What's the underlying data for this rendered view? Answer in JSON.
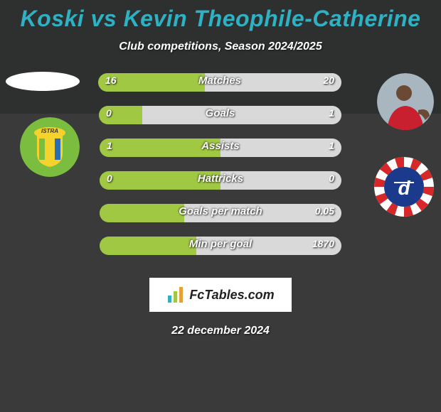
{
  "title": "Koski vs Kevin Theophile-Catherine",
  "subtitle": "Club competitions, Season 2024/2025",
  "date": "22 december 2024",
  "fctables_label": "FcTables.com",
  "colors": {
    "title": "#2fb1c4",
    "bg_top": "#2e2f2f",
    "bg_bottom": "#3a3a3a",
    "bar_track": "#6a6a6a",
    "bar_left": "#a0c843",
    "bar_right": "#d9d9d9",
    "fctables_text": "#222222",
    "fctables_bars": [
      "#2fb1c4",
      "#a0c843",
      "#e4a13a"
    ]
  },
  "club1": {
    "bg": "#7bbd3f",
    "accent": "#f6d22c",
    "label": "ISTRA"
  },
  "club2": {
    "bg": "#ffffff",
    "red": "#d62828",
    "blue": "#1b3a8c",
    "letter": "d"
  },
  "player2_avatar": {
    "shirt": "#c8202e",
    "skin": "#6a4a34",
    "bg": "#a8b6c0"
  },
  "bars": [
    {
      "label": "Matches",
      "left_val": "16",
      "right_val": "20",
      "left_pct": 44,
      "right_pct": 56
    },
    {
      "label": "Goals",
      "left_val": "0",
      "right_val": "1",
      "left_pct": 18,
      "right_pct": 82
    },
    {
      "label": "Assists",
      "left_val": "1",
      "right_val": "1",
      "left_pct": 50,
      "right_pct": 50
    },
    {
      "label": "Hattricks",
      "left_val": "0",
      "right_val": "0",
      "left_pct": 50,
      "right_pct": 50
    },
    {
      "label": "Goals per match",
      "left_val": "",
      "right_val": "0.05",
      "left_pct": 35,
      "right_pct": 65
    },
    {
      "label": "Min per goal",
      "left_val": "",
      "right_val": "1870",
      "left_pct": 40,
      "right_pct": 60
    }
  ]
}
